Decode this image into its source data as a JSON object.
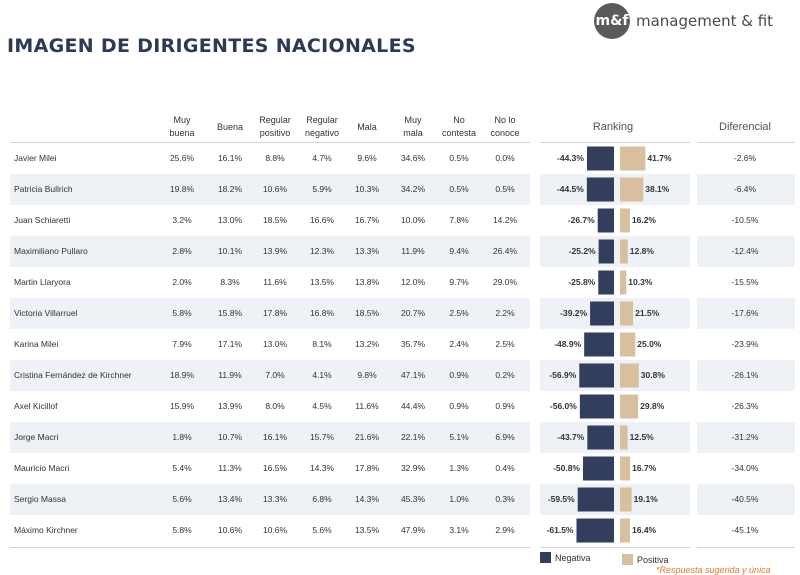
{
  "title": "IMAGEN DE DIRIGENTES NACIONALES",
  "logo": {
    "mark": "m&f",
    "text": "management & fit"
  },
  "columns": [
    "Muy\nbuena",
    "Buena",
    "Regular\npositivo",
    "Regular\nnegativo",
    "Mala",
    "Muy\nmala",
    "No\ncontesta",
    "No lo\nconoce"
  ],
  "sections": {
    "ranking": "Ranking",
    "diferencial": "Diferencial"
  },
  "legend": {
    "negativa": "Negativa",
    "positiva": "Positiva"
  },
  "colors": {
    "negativa": "#323e5c",
    "positiva": "#d8bf9e"
  },
  "footnote": "*Respuesta sugerida y única",
  "chart_data": {
    "type": "table",
    "title": "IMAGEN DE DIRIGENTES NACIONALES",
    "rows": [
      {
        "name": "Javier Milei",
        "values": [
          "25.6%",
          "16.1%",
          "8.8%",
          "4.7%",
          "9.6%",
          "34.6%",
          "0.5%",
          "0.0%"
        ],
        "negativa": -44.3,
        "positiva": 41.7,
        "neg_label": "-44.3%",
        "pos_label": "41.7%",
        "diferencial": "-2.6%"
      },
      {
        "name": "Patricia Bullrich",
        "values": [
          "19.8%",
          "18.2%",
          "10.6%",
          "5.9%",
          "10.3%",
          "34.2%",
          "0.5%",
          "0.5%"
        ],
        "negativa": -44.5,
        "positiva": 38.1,
        "neg_label": "-44.5%",
        "pos_label": "38.1%",
        "diferencial": "-6.4%"
      },
      {
        "name": "Juan Schiaretti",
        "values": [
          "3.2%",
          "13.0%",
          "18.5%",
          "16.6%",
          "16.7%",
          "10.0%",
          "7.8%",
          "14.2%"
        ],
        "negativa": -26.7,
        "positiva": 16.2,
        "neg_label": "-26.7%",
        "pos_label": "16.2%",
        "diferencial": "-10.5%"
      },
      {
        "name": "Maximiliano Pullaro",
        "values": [
          "2.8%",
          "10.1%",
          "13.9%",
          "12.3%",
          "13.3%",
          "11.9%",
          "9.4%",
          "26.4%"
        ],
        "negativa": -25.2,
        "positiva": 12.8,
        "neg_label": "-25.2%",
        "pos_label": "12.8%",
        "diferencial": "-12.4%"
      },
      {
        "name": "Martin Llaryora",
        "values": [
          "2.0%",
          "8.3%",
          "11.6%",
          "13.5%",
          "13.8%",
          "12.0%",
          "9.7%",
          "29.0%"
        ],
        "negativa": -25.8,
        "positiva": 10.3,
        "neg_label": "-25.8%",
        "pos_label": "10.3%",
        "diferencial": "-15.5%"
      },
      {
        "name": "Victoria Villarruel",
        "values": [
          "5.8%",
          "15.8%",
          "17.8%",
          "16.8%",
          "18.5%",
          "20.7%",
          "2.5%",
          "2.2%"
        ],
        "negativa": -39.2,
        "positiva": 21.5,
        "neg_label": "-39.2%",
        "pos_label": "21.5%",
        "diferencial": "-17.6%"
      },
      {
        "name": "Karina Milei",
        "values": [
          "7.9%",
          "17.1%",
          "13.0%",
          "8.1%",
          "13.2%",
          "35.7%",
          "2.4%",
          "2.5%"
        ],
        "negativa": -48.9,
        "positiva": 25.0,
        "neg_label": "-48.9%",
        "pos_label": "25.0%",
        "diferencial": "-23.9%"
      },
      {
        "name": "Cristina Fernández de Kirchner",
        "values": [
          "18.9%",
          "11.9%",
          "7.0%",
          "4.1%",
          "9.8%",
          "47.1%",
          "0.9%",
          "0.2%"
        ],
        "negativa": -56.9,
        "positiva": 30.8,
        "neg_label": "-56.9%",
        "pos_label": "30.8%",
        "diferencial": "-26.1%"
      },
      {
        "name": "Axel Kicillof",
        "values": [
          "15.9%",
          "13.9%",
          "8.0%",
          "4.5%",
          "11.6%",
          "44.4%",
          "0.9%",
          "0.9%"
        ],
        "negativa": -56.0,
        "positiva": 29.8,
        "neg_label": "-56.0%",
        "pos_label": "29.8%",
        "diferencial": "-26.3%"
      },
      {
        "name": "Jorge Macri",
        "values": [
          "1.8%",
          "10.7%",
          "16.1%",
          "15.7%",
          "21.6%",
          "22.1%",
          "5.1%",
          "6.9%"
        ],
        "negativa": -43.7,
        "positiva": 12.5,
        "neg_label": "-43.7%",
        "pos_label": "12.5%",
        "diferencial": "-31.2%"
      },
      {
        "name": "Mauricio Macri",
        "values": [
          "5.4%",
          "11.3%",
          "16.5%",
          "14.3%",
          "17.8%",
          "32.9%",
          "1.3%",
          "0.4%"
        ],
        "negativa": -50.8,
        "positiva": 16.7,
        "neg_label": "-50.8%",
        "pos_label": "16.7%",
        "diferencial": "-34.0%"
      },
      {
        "name": "Sergio Massa",
        "values": [
          "5.6%",
          "13.4%",
          "13.3%",
          "6.8%",
          "14.3%",
          "45.3%",
          "1.0%",
          "0.3%"
        ],
        "negativa": -59.5,
        "positiva": 19.1,
        "neg_label": "-59.5%",
        "pos_label": "19.1%",
        "diferencial": "-40.5%"
      },
      {
        "name": "Máximo Kirchner",
        "values": [
          "5.8%",
          "10.6%",
          "10.6%",
          "5.6%",
          "13.5%",
          "47.9%",
          "3.1%",
          "2.9%"
        ],
        "negativa": -61.5,
        "positiva": 16.4,
        "neg_label": "-61.5%",
        "pos_label": "16.4%",
        "diferencial": "-45.1%"
      }
    ]
  }
}
